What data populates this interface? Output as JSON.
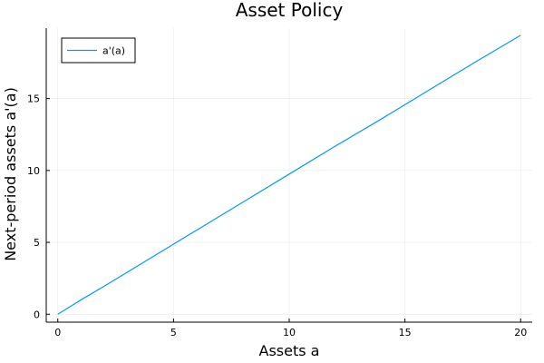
{
  "chart_data": {
    "type": "line",
    "title": "Asset Policy",
    "xlabel": "Assets a",
    "ylabel": "Next-period assets a'(a)",
    "xlim": [
      -0.5,
      20.5
    ],
    "ylim": [
      -0.55,
      19.9
    ],
    "xticks": [
      0,
      5,
      10,
      15,
      20
    ],
    "yticks": [
      0,
      5,
      10,
      15
    ],
    "grid": true,
    "legend_position": "top-left",
    "series": [
      {
        "name": "a'(a)",
        "color": "#009AF9",
        "x": [
          0,
          0.5,
          1,
          2,
          4,
          6,
          8,
          10,
          12,
          14,
          16,
          18,
          20
        ],
        "y": [
          0,
          0.5,
          1.0,
          1.95,
          3.9,
          5.85,
          7.8,
          9.75,
          11.7,
          13.6,
          15.55,
          17.5,
          19.4
        ]
      }
    ]
  }
}
